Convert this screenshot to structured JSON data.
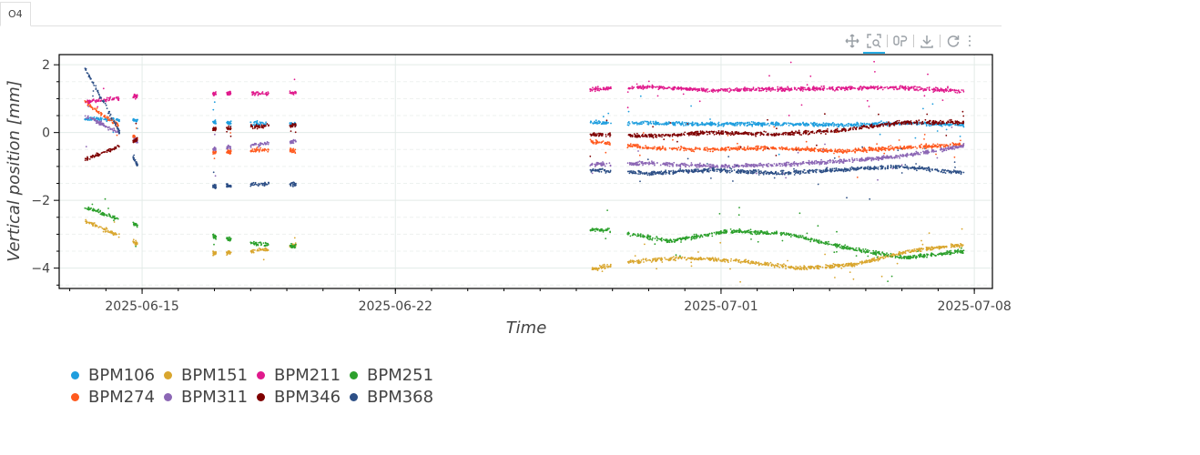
{
  "tab": {
    "label": "O4"
  },
  "toolbar": {
    "tools": [
      {
        "name": "pan-tool",
        "icon": "move-arrows-icon",
        "active": false
      },
      {
        "name": "box-zoom-tool",
        "icon": "box-zoom-icon",
        "active": true
      },
      {
        "name": "hover-tool",
        "icon": "hover-inspect-icon",
        "active": false
      },
      {
        "name": "save-tool",
        "icon": "download-icon",
        "active": false
      },
      {
        "name": "reset-tool",
        "icon": "reset-icon",
        "active": false
      },
      {
        "name": "more-tool",
        "icon": "more-vertical-icon",
        "active": false
      }
    ]
  },
  "chart_data": {
    "type": "scatter",
    "title": "",
    "xlabel": "Time",
    "ylabel": "Vertical position [mm]",
    "xlim": [
      "2025-06-12T17:00",
      "2025-07-08T12:00"
    ],
    "ylim": [
      -4.6,
      2.3
    ],
    "x_ticks": [
      "2025-06-15",
      "2025-06-22",
      "2025-07-01",
      "2025-07-08"
    ],
    "y_ticks": [
      2,
      0,
      -2,
      -4
    ],
    "grid": true,
    "legend_position": "below-left",
    "segments": [
      [
        "2025-06-13T10:00",
        "2025-06-14T09:00"
      ],
      [
        "2025-06-14T18:00",
        "2025-06-14T21:00"
      ],
      [
        "2025-06-16T23:00",
        "2025-06-17T01:00"
      ],
      [
        "2025-06-17T08:00",
        "2025-06-17T11:00"
      ],
      [
        "2025-06-18T00:00",
        "2025-06-18T12:00"
      ],
      [
        "2025-06-19T02:00",
        "2025-06-19T06:00"
      ],
      [
        "2025-06-27T09:00",
        "2025-06-27T23:00"
      ],
      [
        "2025-06-28T10:00",
        "2025-07-07T17:00"
      ]
    ],
    "series": [
      {
        "name": "BPM106",
        "color": "#1f9ede",
        "y": [
          0.4,
          0.35,
          0.3,
          0.25,
          0.3,
          0.25,
          0.6,
          0.35,
          0.3,
          0.28,
          0.25,
          0.25,
          0.22,
          0.28,
          0.22
        ]
      },
      {
        "name": "BPM151",
        "color": "#d9a62e",
        "y": [
          -2.6,
          -3.3,
          -3.6,
          -3.5,
          -3.3,
          -3.3,
          -3.3,
          -3.7,
          -3.9,
          -4.1,
          -3.8,
          -3.7,
          -3.8,
          -4.0,
          -3.9,
          -3.5,
          -3.3
        ]
      },
      {
        "name": "BPM211",
        "color": "#e01a8c",
        "y": [
          0.9,
          1.1,
          1.15,
          1.15,
          1.2,
          1.3,
          1.25,
          1.3,
          1.28,
          1.35,
          1.25,
          1.28,
          1.3,
          1.32,
          1.22
        ]
      },
      {
        "name": "BPM251",
        "color": "#2ca02c",
        "y": [
          -2.2,
          -2.8,
          -3.0,
          -3.3,
          -3.4,
          -3.4,
          -3.2,
          -3.0,
          -2.8,
          -2.9,
          -3.2,
          -2.9,
          -3.0,
          -3.4,
          -3.7,
          -3.5
        ]
      },
      {
        "name": "BPM274",
        "color": "#ff5a1f",
        "y": [
          0.9,
          -0.4,
          -0.6,
          -0.5,
          -0.6,
          -0.4,
          -0.3,
          -0.4,
          -0.25,
          -0.45,
          -0.5,
          -0.45,
          -0.55,
          -0.45,
          -0.35
        ]
      },
      {
        "name": "BPM311",
        "color": "#8c67b5",
        "y": [
          0.5,
          -0.4,
          -0.5,
          -0.3,
          -0.2,
          -0.6,
          -0.7,
          -0.85,
          -0.95,
          -0.9,
          -1.0,
          -0.95,
          -0.85,
          -0.7,
          -0.4
        ]
      },
      {
        "name": "BPM346",
        "color": "#7f0000",
        "y": [
          -0.8,
          -0.1,
          0.1,
          0.2,
          0.25,
          0.05,
          0.0,
          0.1,
          -0.05,
          -0.1,
          0.0,
          -0.05,
          0.05,
          0.3,
          0.3
        ]
      },
      {
        "name": "BPM368",
        "color": "#2d4f86",
        "y": [
          1.9,
          -1.5,
          -1.6,
          -1.5,
          -1.6,
          -1.5,
          -1.1,
          -1.0,
          -1.1,
          -1.2,
          -1.1,
          -1.2,
          -1.1,
          -1.0,
          -1.2
        ]
      }
    ]
  }
}
